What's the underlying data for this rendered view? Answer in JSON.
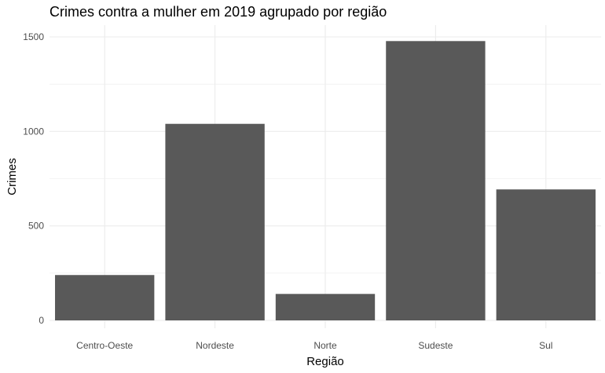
{
  "chart_data": {
    "type": "bar",
    "title": "Crimes contra a mulher em 2019 agrupado por região",
    "xlabel": "Região",
    "ylabel": "Crimes",
    "categories": [
      "Centro-Oeste",
      "Nordeste",
      "Norte",
      "Sudeste",
      "Sul"
    ],
    "values": [
      240,
      1040,
      140,
      1478,
      693
    ],
    "ylim": [
      0,
      1500
    ],
    "yticks": [
      0,
      500,
      1000,
      1500
    ],
    "ytick_labels": [
      "0",
      "500",
      "1000",
      "1500"
    ],
    "grid": true,
    "legend": "none",
    "colors": {
      "bar": "#595959",
      "grid": "#ebebeb",
      "background": "#ffffff"
    }
  }
}
